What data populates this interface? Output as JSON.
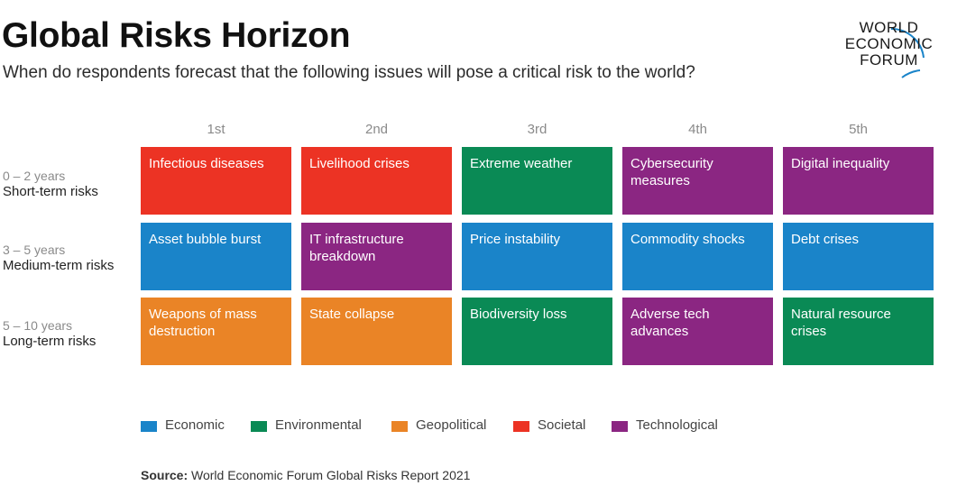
{
  "header": {
    "title": "Global Risks Horizon",
    "subtitle": "When do respondents forecast that the following issues will pose a critical risk to the world?"
  },
  "logo": {
    "line1": "WORLD",
    "line2": "ECONOMIC",
    "line3": "FORUM"
  },
  "chart_data": {
    "type": "table",
    "title": "Global Risks Horizon",
    "columns": [
      "1st",
      "2nd",
      "3rd",
      "4th",
      "5th"
    ],
    "rows": [
      {
        "range": "0 – 2 years",
        "name": "Short-term risks",
        "cells": [
          {
            "label": "Infectious diseases",
            "category": "Societal"
          },
          {
            "label": "Livelihood crises",
            "category": "Societal"
          },
          {
            "label": "Extreme weather",
            "category": "Environmental"
          },
          {
            "label": "Cybersecurity measures",
            "category": "Technological"
          },
          {
            "label": "Digital inequality",
            "category": "Technological"
          }
        ]
      },
      {
        "range": "3 – 5 years",
        "name": "Medium-term risks",
        "cells": [
          {
            "label": "Asset bubble burst",
            "category": "Economic"
          },
          {
            "label": "IT infrastructure breakdown",
            "category": "Technological"
          },
          {
            "label": "Price instability",
            "category": "Economic"
          },
          {
            "label": "Commodity shocks",
            "category": "Economic"
          },
          {
            "label": "Debt crises",
            "category": "Economic"
          }
        ]
      },
      {
        "range": "5 – 10 years",
        "name": "Long-term risks",
        "cells": [
          {
            "label": "Weapons of mass destruction",
            "category": "Geopolitical"
          },
          {
            "label": "State collapse",
            "category": "Geopolitical"
          },
          {
            "label": "Biodiversity loss",
            "category": "Environmental"
          },
          {
            "label": "Adverse tech advances",
            "category": "Technological"
          },
          {
            "label": "Natural resource crises",
            "category": "Environmental"
          }
        ]
      }
    ],
    "legend": [
      {
        "name": "Economic",
        "color": "#1a84c9"
      },
      {
        "name": "Environmental",
        "color": "#0a8a55"
      },
      {
        "name": "Geopolitical",
        "color": "#ea8426"
      },
      {
        "name": "Societal",
        "color": "#ec3324"
      },
      {
        "name": "Technological",
        "color": "#8b2682"
      }
    ],
    "legend_position": "bottom",
    "grid": false
  },
  "source": {
    "label": "Source:",
    "text": " World Economic Forum Global Risks Report 2021"
  }
}
